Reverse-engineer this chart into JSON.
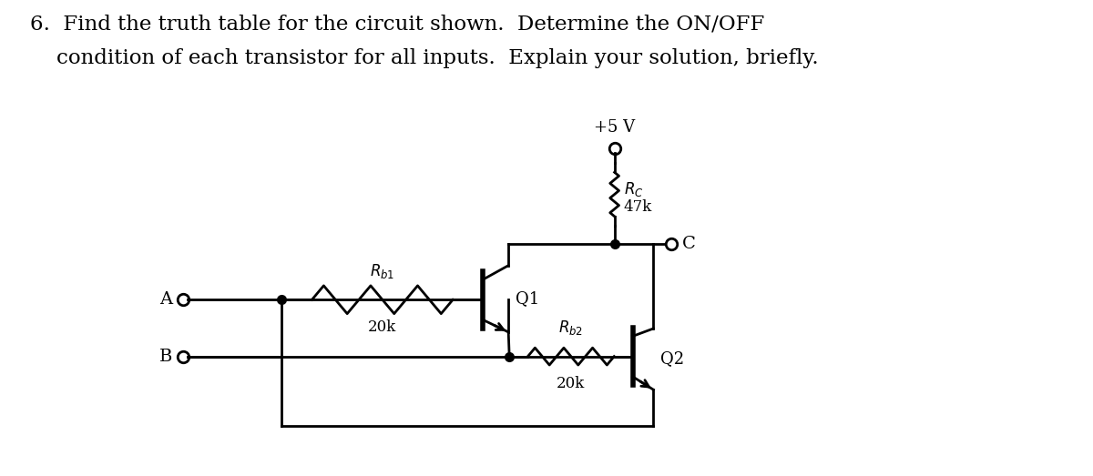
{
  "title_line1": "6.  Find the truth table for the circuit shown.  Determine the ON/OFF",
  "title_line2": "    condition of each transistor for all inputs.  Explain your solution, briefly.",
  "bg_color": "#ffffff",
  "line_color": "#000000",
  "title_fontsize": 16.5,
  "circuit": {
    "vcc_label": "+5 V",
    "rc_label1": "$R_C$",
    "rc_label2": "47k",
    "rb1_label1": "$R_{b1}$",
    "rb1_label2": "20k",
    "rb2_label1": "$R_{b2}$",
    "rb2_label2": "20k",
    "q1_label": "Q1",
    "q2_label": "Q2",
    "input_a": "A",
    "input_b": "B",
    "output_c": "C"
  }
}
